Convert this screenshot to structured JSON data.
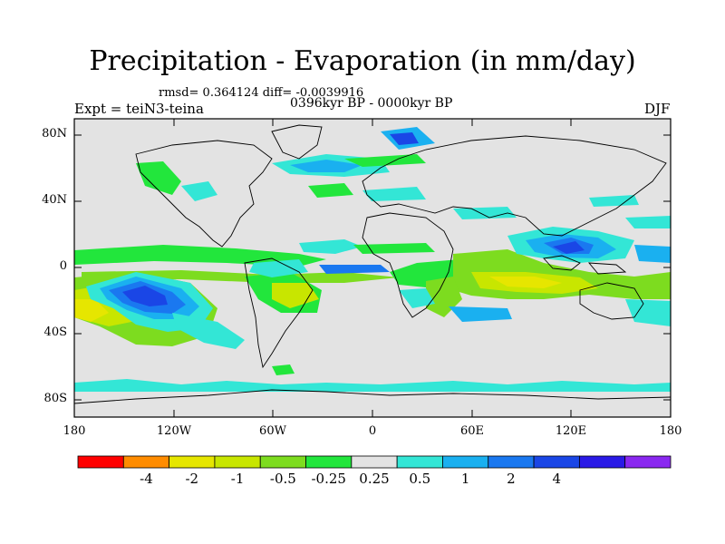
{
  "title": "Precipitation - Evaporation (in mm/day)",
  "stats_line": "rmsd= 0.364124 diff= -0.0039916",
  "period_line": "0396kyr BP - 0000kyr BP",
  "experiment_label": "Expt = teiN3-teina",
  "season_label": "DJF",
  "lat_ticks": [
    "80N",
    "40N",
    "0",
    "40S",
    "80S"
  ],
  "lon_ticks": [
    "180",
    "120W",
    "60W",
    "0",
    "60E",
    "120E",
    "180"
  ],
  "colorbar": {
    "colors": [
      "#ff0000",
      "#ff8c00",
      "#e6e600",
      "#c8e600",
      "#7ddc1f",
      "#22e63c",
      "#e3e3e3",
      "#33e6d6",
      "#1ab0f0",
      "#1a78f0",
      "#1a46e6",
      "#2a1ae6",
      "#8a28f0"
    ],
    "labels": [
      "-4",
      "-2",
      "-1",
      "-0.5",
      "-0.25",
      "0.25",
      "0.5",
      "1",
      "2",
      "4"
    ]
  }
}
